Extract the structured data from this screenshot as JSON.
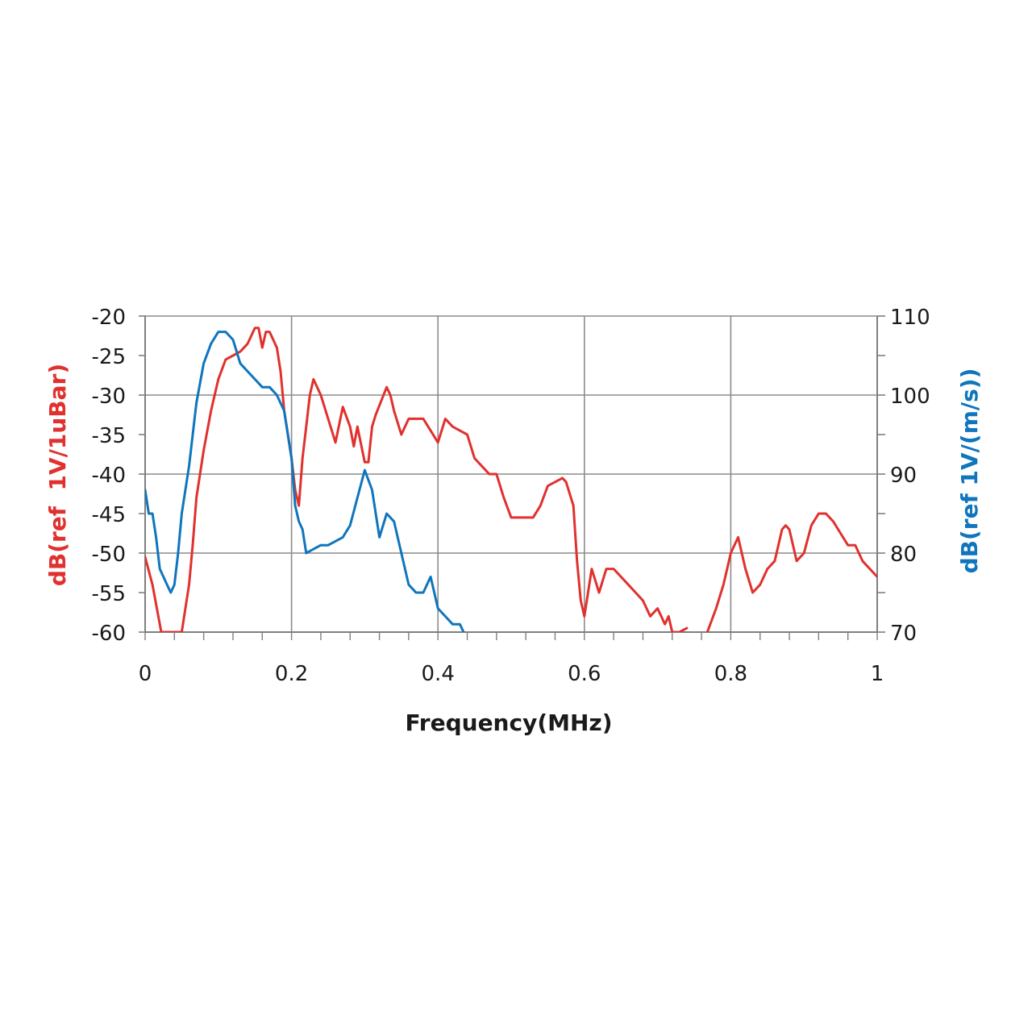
{
  "chart_data": {
    "type": "line",
    "xlabel": "Frequency(MHz)",
    "ylabel_left": "dB(ref  1V/1uBar)",
    "ylabel_right": "dB(ref 1V/(m/s))",
    "xlim": [
      0,
      1
    ],
    "ylim_left": [
      -60,
      -20
    ],
    "ylim_right": [
      70,
      110
    ],
    "x_ticks": [
      "0",
      "0.2",
      "0.4",
      "0.6",
      "0.8",
      "1"
    ],
    "y_left_ticks": [
      "-20",
      "-25",
      "-30",
      "-35",
      "-40",
      "-45",
      "-50",
      "-55",
      "-60"
    ],
    "y_right_ticks": [
      "110",
      "100",
      "90",
      "80",
      "70"
    ],
    "grid": true,
    "colors": {
      "left_series": "#e0312e",
      "right_series": "#0f75bd",
      "grid": "#8c8c8c",
      "axis": "#7f7f7f"
    },
    "series": [
      {
        "axis": "left",
        "color": "#e0312e",
        "x": [
          0.0,
          0.01,
          0.02,
          0.022,
          0.05,
          0.06,
          0.065,
          0.07,
          0.08,
          0.09,
          0.1,
          0.11,
          0.12,
          0.13,
          0.14,
          0.15,
          0.155,
          0.16,
          0.165,
          0.17,
          0.18,
          0.185,
          0.19,
          0.2,
          0.205,
          0.21,
          0.215,
          0.22,
          0.225,
          0.23,
          0.24,
          0.25,
          0.26,
          0.27,
          0.28,
          0.285,
          0.29,
          0.3,
          0.305,
          0.31,
          0.315,
          0.33,
          0.335,
          0.34,
          0.35,
          0.36,
          0.37,
          0.38,
          0.39,
          0.4,
          0.41,
          0.42,
          0.43,
          0.44,
          0.45,
          0.46,
          0.47,
          0.48,
          0.49,
          0.5,
          0.51,
          0.52,
          0.53,
          0.54,
          0.55,
          0.56,
          0.57,
          0.575,
          0.585,
          0.59,
          0.595,
          0.6,
          0.61,
          0.62,
          0.63,
          0.64,
          0.65,
          0.66,
          0.67,
          0.68,
          0.69,
          0.7,
          0.71,
          0.715,
          0.72,
          0.73,
          0.74
        ],
        "y": [
          -50.5,
          -54,
          -59,
          -60,
          -60,
          -54,
          -49,
          -43,
          -37,
          -32,
          -28,
          -25.5,
          -25,
          -24.5,
          -23.5,
          -21.5,
          -21.5,
          -24,
          -22,
          -22,
          -24,
          -27,
          -32,
          -38,
          -42,
          -44,
          -38,
          -34,
          -30,
          -28,
          -30,
          -33,
          -36,
          -31.5,
          -34,
          -36.5,
          -34,
          -38.5,
          -38.5,
          -34,
          -32.5,
          -29,
          -30,
          -32,
          -35,
          -33,
          -33,
          -33,
          -34.5,
          -36,
          -33,
          -34,
          -34.5,
          -35,
          -38,
          -39,
          -40,
          -40,
          -43,
          -45.5,
          -45.5,
          -45.5,
          -45.5,
          -44,
          -41.5,
          -41,
          -40.5,
          -41,
          -44,
          -51,
          -56,
          -58,
          -52,
          -55,
          -52,
          -52,
          -53,
          -54,
          -55,
          -56,
          -58,
          -57,
          -59,
          -58,
          -60,
          -60,
          -59.5
        ]
      },
      {
        "axis": "left",
        "color": "#e0312e",
        "x": [
          0.768,
          0.78,
          0.79,
          0.8,
          0.81,
          0.82,
          0.83,
          0.84,
          0.85,
          0.86,
          0.87,
          0.875,
          0.88,
          0.89,
          0.9,
          0.91,
          0.92,
          0.93,
          0.94,
          0.95,
          0.96,
          0.97,
          0.98,
          0.99,
          1.0
        ],
        "y": [
          -60,
          -57,
          -54,
          -50,
          -48,
          -52,
          -55,
          -54,
          -52,
          -51,
          -47,
          -46.5,
          -47,
          -51,
          -50,
          -46.5,
          -45,
          -45,
          -46,
          -47.5,
          -49,
          -49,
          -51,
          -52,
          -53
        ]
      },
      {
        "axis": "right",
        "color": "#0f75bd",
        "x": [
          0.0,
          0.005,
          0.01,
          0.015,
          0.02,
          0.025,
          0.03,
          0.035,
          0.04,
          0.045,
          0.05,
          0.06,
          0.07,
          0.08,
          0.09,
          0.1,
          0.11,
          0.12,
          0.13,
          0.14,
          0.15,
          0.16,
          0.17,
          0.18,
          0.19,
          0.2,
          0.205,
          0.21,
          0.215,
          0.22,
          0.23,
          0.24,
          0.25,
          0.26,
          0.27,
          0.28,
          0.29,
          0.3,
          0.31,
          0.32,
          0.33,
          0.34,
          0.35,
          0.36,
          0.37,
          0.38,
          0.39,
          0.4,
          0.41,
          0.42,
          0.43,
          0.435
        ],
        "y": [
          88,
          85,
          85,
          82,
          78,
          77,
          76,
          75,
          76,
          80,
          85,
          91,
          99,
          104,
          106.5,
          108,
          108,
          107,
          104,
          103,
          102,
          101,
          101,
          100,
          98,
          92,
          86,
          84,
          83,
          80,
          80.5,
          81,
          81,
          81.5,
          82,
          83.5,
          87,
          90.5,
          88,
          82,
          85,
          84,
          80,
          76,
          75,
          75,
          77,
          73,
          72,
          71,
          71,
          70
        ]
      }
    ]
  }
}
